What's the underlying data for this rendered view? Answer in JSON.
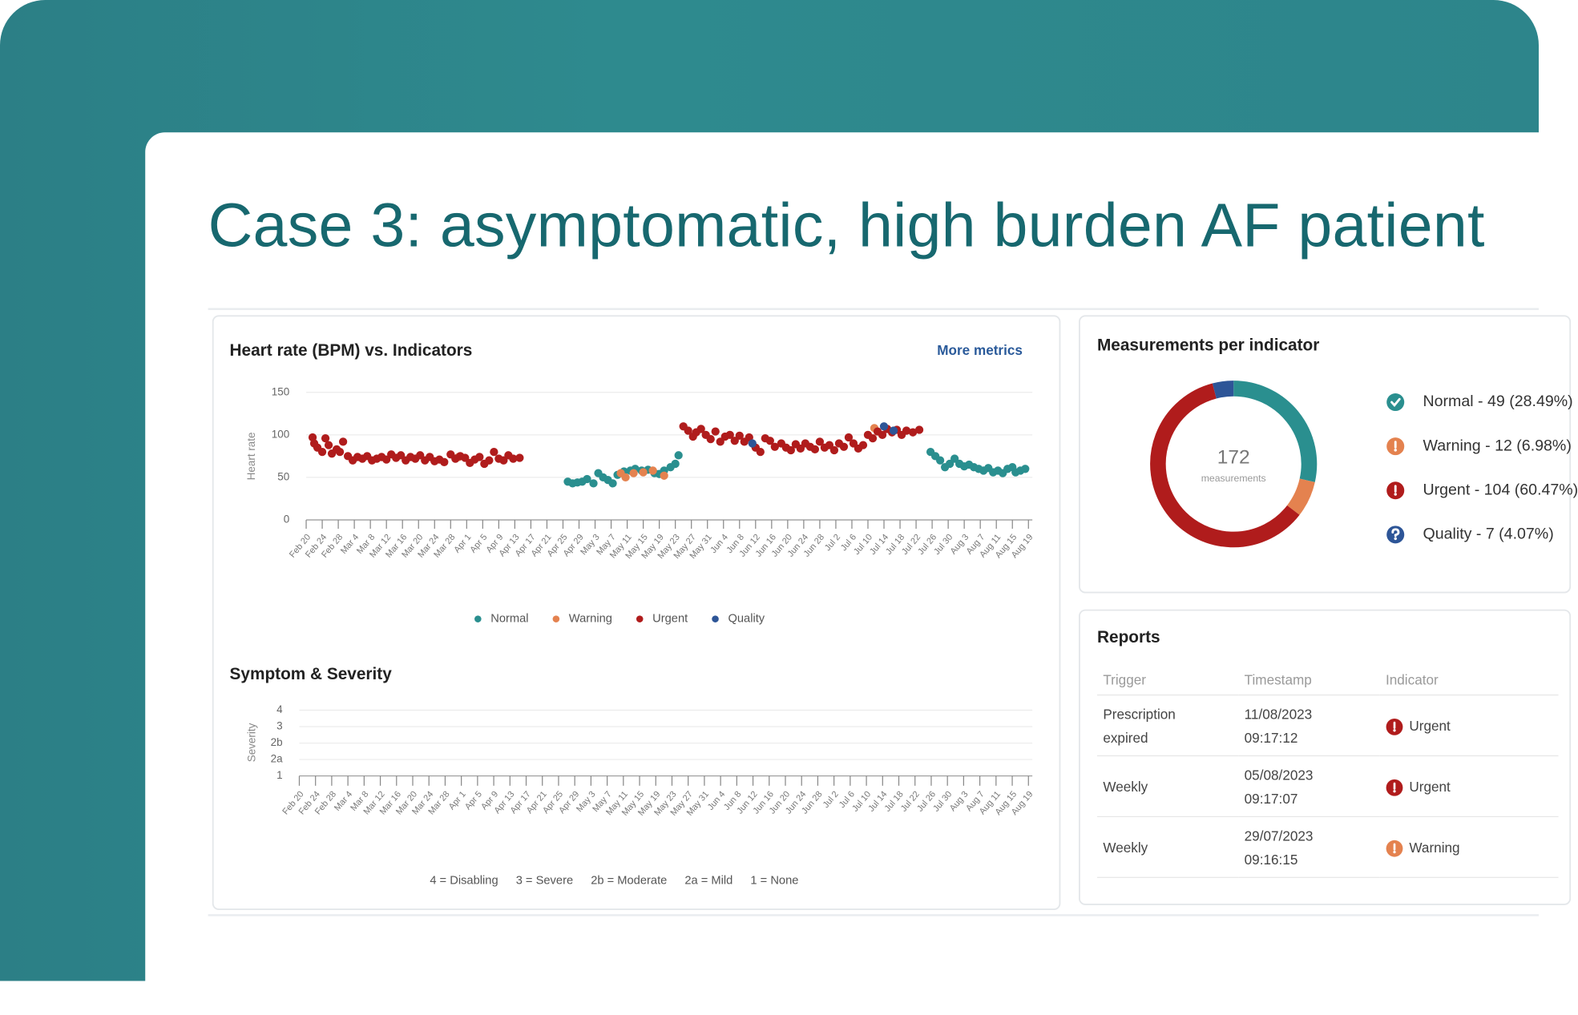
{
  "title": "Case 3: asymptomatic, high burden AF patient",
  "chart_data": [
    {
      "type": "scatter",
      "title": "Heart rate (BPM) vs. Indicators",
      "link": "More metrics",
      "ylabel": "Heart rate",
      "grid": true,
      "legend": "bottom",
      "ylim": [
        0,
        150
      ],
      "yticks": [
        0,
        50,
        100,
        150
      ],
      "xlim": [
        0,
        45
      ],
      "categories": [
        "Feb 20",
        "Feb 24",
        "Feb 28",
        "Mar 4",
        "Mar 8",
        "Mar 12",
        "Mar 16",
        "Mar 20",
        "Mar 24",
        "Mar 28",
        "Apr 1",
        "Apr 5",
        "Apr 9",
        "Apr 13",
        "Apr 17",
        "Apr 21",
        "Apr 25",
        "Apr 29",
        "May 3",
        "May 7",
        "May 11",
        "May 15",
        "May 19",
        "May 23",
        "May 27",
        "May 31",
        "Jun 4",
        "Jun 8",
        "Jun 12",
        "Jun 16",
        "Jun 20",
        "Jun 24",
        "Jun 28",
        "Jul 2",
        "Jul 6",
        "Jul 10",
        "Jul 14",
        "Jul 18",
        "Jul 22",
        "Jul 26",
        "Jul 30",
        "Aug 3",
        "Aug 7",
        "Aug 11",
        "Aug 15",
        "Aug 19"
      ],
      "series": [
        {
          "name": "Normal",
          "color": "#2a8f8f",
          "x": [
            16.3,
            16.6,
            16.9,
            17.2,
            17.5,
            17.9,
            18.2,
            18.5,
            18.8,
            19.1,
            19.4,
            19.8,
            20.2,
            20.5,
            20.9,
            21.3,
            21.7,
            22.0,
            22.3,
            22.7,
            23.0,
            23.2,
            38.9,
            39.2,
            39.5,
            39.8,
            40.1,
            40.4,
            40.7,
            41.0,
            41.3,
            41.6,
            41.9,
            42.2,
            42.5,
            42.8,
            43.1,
            43.4,
            43.7,
            44.0,
            44.2,
            44.5,
            44.8
          ],
          "values": [
            45,
            43,
            44,
            45,
            48,
            43,
            55,
            50,
            47,
            43,
            53,
            57,
            58,
            60,
            58,
            59,
            55,
            54,
            58,
            62,
            66,
            76,
            80,
            75,
            70,
            62,
            66,
            72,
            66,
            63,
            65,
            62,
            60,
            58,
            61,
            56,
            58,
            55,
            60,
            62,
            56,
            58,
            60
          ]
        },
        {
          "name": "Warning",
          "color": "#e4824f",
          "x": [
            9.5,
            19.6,
            19.9,
            20.4,
            21.0,
            21.6,
            22.3,
            35.4
          ],
          "values": [
            74,
            55,
            50,
            55,
            56,
            58,
            52,
            108
          ]
        },
        {
          "name": "Urgent",
          "color": "#b01c1c",
          "x": [
            0.4,
            0.5,
            0.7,
            1.0,
            1.2,
            1.4,
            1.6,
            1.9,
            2.1,
            2.3,
            2.6,
            2.9,
            3.2,
            3.5,
            3.8,
            4.1,
            4.4,
            4.7,
            5.0,
            5.3,
            5.6,
            5.9,
            6.2,
            6.5,
            6.8,
            7.1,
            7.4,
            7.7,
            8.0,
            8.3,
            8.6,
            9.0,
            9.3,
            9.6,
            9.9,
            10.2,
            10.5,
            10.8,
            11.1,
            11.4,
            11.7,
            12.0,
            12.3,
            12.6,
            12.9,
            13.3,
            23.5,
            23.8,
            24.1,
            24.3,
            24.6,
            24.9,
            25.2,
            25.5,
            25.8,
            26.1,
            26.4,
            26.7,
            27.0,
            27.3,
            27.6,
            28.0,
            28.3,
            28.6,
            28.9,
            29.2,
            29.6,
            29.9,
            30.2,
            30.5,
            30.8,
            31.1,
            31.4,
            31.7,
            32.0,
            32.3,
            32.6,
            32.9,
            33.2,
            33.5,
            33.8,
            34.1,
            34.4,
            34.7,
            35.0,
            35.3,
            35.6,
            35.9,
            36.2,
            36.5,
            36.8,
            37.1,
            37.4,
            37.8,
            38.2
          ],
          "values": [
            97,
            90,
            85,
            80,
            96,
            88,
            78,
            83,
            80,
            92,
            75,
            70,
            74,
            72,
            75,
            70,
            72,
            74,
            71,
            77,
            73,
            76,
            70,
            74,
            72,
            76,
            70,
            74,
            69,
            71,
            68,
            77,
            72,
            75,
            73,
            67,
            71,
            74,
            66,
            70,
            80,
            72,
            70,
            76,
            72,
            73,
            110,
            105,
            98,
            103,
            107,
            100,
            95,
            104,
            92,
            98,
            100,
            93,
            99,
            92,
            97,
            85,
            80,
            96,
            93,
            86,
            90,
            85,
            82,
            89,
            84,
            90,
            86,
            83,
            92,
            85,
            88,
            82,
            90,
            86,
            97,
            90,
            84,
            88,
            100,
            96,
            104,
            100,
            107,
            103,
            106,
            100,
            105,
            103,
            106
          ]
        },
        {
          "name": "Quality",
          "color": "#2d5597",
          "x": [
            27.8,
            36.0,
            36.6
          ],
          "values": [
            90,
            110,
            105
          ]
        }
      ]
    },
    {
      "type": "scatter",
      "title": "Symptom & Severity",
      "ylabel": "Severity",
      "grid": true,
      "ycategories": [
        "1",
        "2a",
        "2b",
        "3",
        "4"
      ],
      "categories": [
        "Feb 20",
        "Feb 24",
        "Feb 28",
        "Mar 4",
        "Mar 8",
        "Mar 12",
        "Mar 16",
        "Mar 20",
        "Mar 24",
        "Mar 28",
        "Apr 1",
        "Apr 5",
        "Apr 9",
        "Apr 13",
        "Apr 17",
        "Apr 21",
        "Apr 25",
        "Apr 29",
        "May 3",
        "May 7",
        "May 11",
        "May 15",
        "May 19",
        "May 23",
        "May 27",
        "May 31",
        "Jun 4",
        "Jun 8",
        "Jun 12",
        "Jun 16",
        "Jun 20",
        "Jun 24",
        "Jun 28",
        "Jul 2",
        "Jul 6",
        "Jul 10",
        "Jul 14",
        "Jul 18",
        "Jul 22",
        "Jul 26",
        "Jul 30",
        "Aug 3",
        "Aug 7",
        "Aug 11",
        "Aug 15",
        "Aug 19"
      ],
      "legend": [
        "4 = Disabling",
        "3 = Severe",
        "2b = Moderate",
        "2a = Mild",
        "1 = None"
      ]
    },
    {
      "type": "donut",
      "title": "Measurements per indicator",
      "total": 172,
      "total_label": "measurements",
      "labels": [
        "Normal - 49 (28.49%)",
        "Warning - 12 (6.98%)",
        "Urgent - 104 (60.47%)",
        "Quality - 7 (4.07%)"
      ],
      "values": [
        49,
        12,
        104,
        7
      ],
      "colors": [
        "#2a8f8f",
        "#e4824f",
        "#b01c1c",
        "#2d5597"
      ]
    }
  ],
  "reports": {
    "title": "Reports",
    "columns": [
      "Trigger",
      "Timestamp",
      "Indicator"
    ],
    "rows": [
      {
        "trigger": "Prescription expired",
        "timestamp": "11/08/2023 09:17:12",
        "indicator": "Urgent",
        "color": "#b01c1c"
      },
      {
        "trigger": "Weekly",
        "timestamp": "05/08/2023 09:17:07",
        "indicator": "Urgent",
        "color": "#b01c1c"
      },
      {
        "trigger": "Weekly",
        "timestamp": "29/07/2023 09:16:15",
        "indicator": "Warning",
        "color": "#e4824f"
      }
    ]
  }
}
